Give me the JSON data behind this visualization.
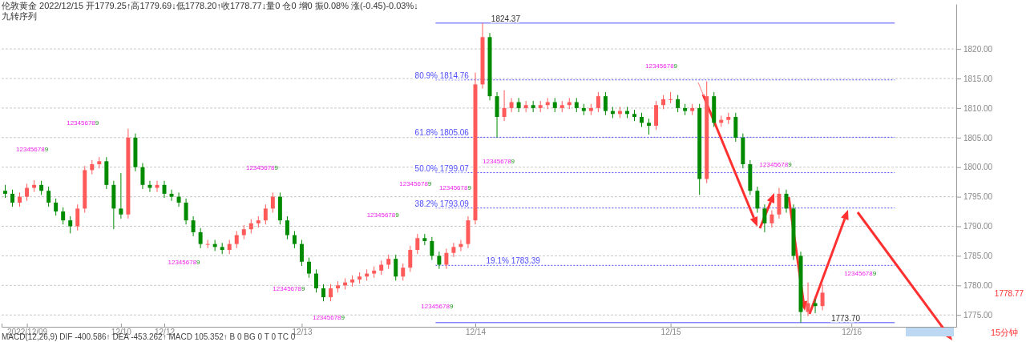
{
  "chart_data": {
    "type": "candlestick",
    "title": "伦敦黄金 2022/12/15 开1779.25↑高1779.69↓低1778.20↑收1778.77↓量0 仓0 增0 振0.08% 涨(-0.45)-0.03%↓",
    "subtitle": "九转序列",
    "categories": [
      null,
      null,
      null,
      "2022/12/09",
      null,
      null,
      null,
      null,
      null,
      null,
      null,
      null,
      null,
      null,
      null,
      null,
      "12/10",
      null,
      null,
      null,
      null,
      null,
      "12/12",
      null,
      null,
      null,
      null,
      null,
      null,
      null,
      null,
      null,
      null,
      null,
      null,
      null,
      null,
      null,
      null,
      null,
      null,
      "12/13",
      null,
      null,
      null,
      null,
      null,
      null,
      null,
      null,
      null,
      null,
      null,
      null,
      null,
      null,
      null,
      null,
      null,
      null,
      null,
      null,
      null,
      null,
      null,
      "12/14",
      null,
      null,
      null,
      null,
      null,
      null,
      null,
      null,
      null,
      null,
      null,
      null,
      null,
      null,
      null,
      null,
      null,
      null,
      null,
      null,
      null,
      null,
      null,
      null,
      null,
      null,
      "12/15",
      null,
      null,
      null,
      null,
      null,
      null,
      null,
      null,
      null,
      null,
      null,
      null,
      null,
      null,
      null,
      null,
      null,
      null,
      null,
      null,
      null,
      null,
      null,
      null,
      "12/16",
      null,
      null,
      null,
      null,
      null,
      null,
      null,
      null,
      null,
      null,
      null,
      null,
      null,
      null
    ],
    "ohlc": [
      [
        1796,
        1797,
        1794.8,
        1795.5
      ],
      [
        1795.5,
        1796.2,
        1793.3,
        1794
      ],
      [
        1794,
        1795.7,
        1793.3,
        1795
      ],
      [
        1795,
        1797.2,
        1794.3,
        1796.5
      ],
      [
        1796.5,
        1797.8,
        1795.8,
        1797
      ],
      [
        1797,
        1797.7,
        1795.3,
        1796
      ],
      [
        1796,
        1796.7,
        1793.3,
        1794
      ],
      [
        1794,
        1794.7,
        1791.8,
        1792.5
      ],
      [
        1792.5,
        1793.2,
        1790.3,
        1791
      ],
      [
        1791,
        1791.7,
        1788.8,
        1790
      ],
      [
        1790,
        1793.7,
        1789.3,
        1793
      ],
      [
        1793,
        1800.2,
        1792.3,
        1799.5
      ],
      [
        1799.5,
        1801.2,
        1798.8,
        1800.5
      ],
      [
        1800.5,
        1801.7,
        1799.8,
        1801
      ],
      [
        1801,
        1801.7,
        1796.3,
        1797
      ],
      [
        1797,
        1797.7,
        1789.5,
        1793
      ],
      [
        1793,
        1799,
        1791.3,
        1792
      ],
      [
        1792,
        1806.5,
        1791.3,
        1805
      ],
      [
        1805,
        1805.7,
        1799.3,
        1800
      ],
      [
        1800,
        1800.7,
        1796.3,
        1797
      ],
      [
        1797,
        1797.7,
        1795.8,
        1796.5
      ],
      [
        1796.5,
        1797.7,
        1795.8,
        1797
      ],
      [
        1797,
        1797.7,
        1794.8,
        1795.5
      ],
      [
        1795.5,
        1796.2,
        1794.3,
        1795
      ],
      [
        1795,
        1795.7,
        1793.3,
        1794
      ],
      [
        1794,
        1794.7,
        1790.3,
        1791
      ],
      [
        1791,
        1791.7,
        1788.3,
        1789
      ],
      [
        1789,
        1789.7,
        1786.3,
        1787
      ],
      [
        1787,
        1787.7,
        1786.3,
        1787
      ],
      [
        1787,
        1787.7,
        1785.8,
        1786.5
      ],
      [
        1786.5,
        1787.2,
        1785.3,
        1786
      ],
      [
        1786,
        1787.7,
        1785.3,
        1787
      ],
      [
        1787,
        1789.2,
        1786.3,
        1788.5
      ],
      [
        1788.5,
        1790.2,
        1787.8,
        1789.5
      ],
      [
        1789.5,
        1791.2,
        1788.8,
        1790.5
      ],
      [
        1790.5,
        1791.7,
        1789.8,
        1791
      ],
      [
        1791,
        1793.7,
        1790.3,
        1793
      ],
      [
        1793,
        1795.7,
        1792.3,
        1795
      ],
      [
        1795,
        1795.7,
        1790.3,
        1791
      ],
      [
        1791,
        1791.7,
        1787.8,
        1788.5
      ],
      [
        1788.5,
        1789.2,
        1786.3,
        1787
      ],
      [
        1787,
        1787.7,
        1783.3,
        1784
      ],
      [
        1784,
        1784.7,
        1781.3,
        1782
      ],
      [
        1782,
        1782.7,
        1778.8,
        1779.5
      ],
      [
        1779.5,
        1780.2,
        1777.3,
        1778
      ],
      [
        1778,
        1780.2,
        1777.3,
        1779.5
      ],
      [
        1779.5,
        1780.7,
        1778.8,
        1780
      ],
      [
        1780,
        1781.2,
        1779.3,
        1780.5
      ],
      [
        1780.5,
        1781.7,
        1779.8,
        1781
      ],
      [
        1781,
        1782.2,
        1780.3,
        1781.5
      ],
      [
        1781.5,
        1782.7,
        1780.8,
        1782
      ],
      [
        1782,
        1783.2,
        1781.3,
        1782.5
      ],
      [
        1782.5,
        1784.2,
        1781.8,
        1783.5
      ],
      [
        1783.5,
        1785.2,
        1782.8,
        1784.5
      ],
      [
        1784.5,
        1785.2,
        1780.8,
        1781.5
      ],
      [
        1781.5,
        1783.7,
        1780.8,
        1783
      ],
      [
        1783,
        1786.7,
        1782.3,
        1786
      ],
      [
        1786,
        1788.7,
        1785.3,
        1788
      ],
      [
        1788,
        1788.7,
        1786.8,
        1787.5
      ],
      [
        1787.5,
        1788.2,
        1784.3,
        1785
      ],
      [
        1785,
        1785.7,
        1782.8,
        1783.5
      ],
      [
        1783.5,
        1786.2,
        1782.8,
        1785.5
      ],
      [
        1785.5,
        1787.2,
        1784.8,
        1786.5
      ],
      [
        1786.5,
        1787.7,
        1785.8,
        1787
      ],
      [
        1787,
        1791.7,
        1786.3,
        1791
      ],
      [
        1791,
        1816,
        1790.3,
        1814
      ],
      [
        1814,
        1824.37,
        1813.3,
        1822
      ],
      [
        1822,
        1822.7,
        1811.3,
        1812
      ],
      [
        1812,
        1812.7,
        1805,
        1808.5
      ],
      [
        1808.5,
        1813,
        1807.8,
        1810
      ],
      [
        1810,
        1811.7,
        1809.3,
        1811
      ],
      [
        1811,
        1811.7,
        1809.3,
        1810
      ],
      [
        1810,
        1811.2,
        1809.3,
        1810.5
      ],
      [
        1810.5,
        1811.2,
        1809.3,
        1810
      ],
      [
        1810,
        1811.2,
        1809.3,
        1810.5
      ],
      [
        1810.5,
        1811.7,
        1809.8,
        1811
      ],
      [
        1811,
        1811.7,
        1809.3,
        1810
      ],
      [
        1810,
        1811.2,
        1809.3,
        1810.5
      ],
      [
        1810.5,
        1811.7,
        1809.8,
        1811
      ],
      [
        1811,
        1811.7,
        1809.3,
        1810
      ],
      [
        1810,
        1810.7,
        1808.8,
        1809.5
      ],
      [
        1809.5,
        1810.7,
        1808.8,
        1810
      ],
      [
        1810,
        1812.7,
        1809.3,
        1812
      ],
      [
        1812,
        1812.7,
        1808.8,
        1809.5
      ],
      [
        1809.5,
        1810.2,
        1808.3,
        1809
      ],
      [
        1809,
        1810.2,
        1808.3,
        1809.5
      ],
      [
        1809.5,
        1810.2,
        1808.3,
        1809
      ],
      [
        1809,
        1809.7,
        1807.8,
        1808.5
      ],
      [
        1808.5,
        1809.2,
        1806.8,
        1807.5
      ],
      [
        1807.5,
        1808.2,
        1805.5,
        1807
      ],
      [
        1807,
        1811.2,
        1806.3,
        1810.5
      ],
      [
        1810.5,
        1812.2,
        1809.8,
        1811.5
      ],
      [
        1811.5,
        1812.7,
        1810.8,
        1811.5
      ],
      [
        1811.5,
        1812.2,
        1809.3,
        1810
      ],
      [
        1810,
        1810.7,
        1808.8,
        1809.5
      ],
      [
        1809.5,
        1810.7,
        1808.8,
        1810
      ],
      [
        1810,
        1810.7,
        1795.3,
        1798
      ],
      [
        1798,
        1814.5,
        1797.3,
        1812
      ],
      [
        1812,
        1812.7,
        1806.8,
        1807.5
      ],
      [
        1807.5,
        1808.7,
        1806.8,
        1808
      ],
      [
        1808,
        1809.2,
        1807.3,
        1808.5
      ],
      [
        1808.5,
        1809.2,
        1804.3,
        1805
      ],
      [
        1805,
        1805.7,
        1799.8,
        1800.5
      ],
      [
        1800.5,
        1801.2,
        1795.3,
        1796
      ],
      [
        1796,
        1796.7,
        1792.3,
        1793
      ],
      [
        1793,
        1793.7,
        1789,
        1790.5
      ],
      [
        1790.5,
        1792.7,
        1789.8,
        1792
      ],
      [
        1792,
        1796.5,
        1791.3,
        1795.5
      ],
      [
        1795.5,
        1796.2,
        1792.3,
        1793
      ],
      [
        1793,
        1793.7,
        1784.3,
        1785
      ],
      [
        1785,
        1785.7,
        1773.7,
        1775.5
      ],
      [
        1775.5,
        1780.5,
        1774.8,
        1777
      ],
      [
        1777,
        1777.7,
        1775.3,
        1776.5
      ],
      [
        1776.5,
        1780.2,
        1775.8,
        1778.77
      ],
      null,
      null,
      null,
      null,
      null,
      null,
      null,
      null,
      null,
      null,
      null,
      null,
      null,
      null,
      null,
      null,
      null,
      null
    ],
    "ylim": [
      1773,
      1827.6
    ],
    "yticks": [
      {
        "value": 1775,
        "label": "1775.00"
      },
      {
        "value": 1780,
        "label": "1780.00"
      },
      {
        "value": 1785,
        "label": "1785.00"
      },
      {
        "value": 1790,
        "label": "1790.00"
      },
      {
        "value": 1795,
        "label": "1795.00"
      },
      {
        "value": 1800,
        "label": "1800.00"
      },
      {
        "value": 1805,
        "label": "1805.00"
      },
      {
        "value": 1810,
        "label": "1810.00"
      },
      {
        "value": 1815,
        "label": "1815.00"
      },
      {
        "value": 1820,
        "label": "1820.00"
      }
    ],
    "grid": "y",
    "ref_lines": [
      {
        "axis": "y",
        "value": 1824.37,
        "label": "1824.37",
        "color": "#4d4dff",
        "line_style": "solid"
      },
      {
        "axis": "y",
        "value": 1814.76,
        "label": "80.9% 1814.76",
        "color": "#4d4dff",
        "line_style": "dotted"
      },
      {
        "axis": "y",
        "value": 1805.06,
        "label": "61.8% 1805.06",
        "color": "#4d4dff",
        "line_style": "dotted"
      },
      {
        "axis": "y",
        "value": 1799.07,
        "label": "50.0% 1799.07",
        "color": "#4d4dff",
        "line_style": "dotted"
      },
      {
        "axis": "y",
        "value": 1793.09,
        "label": "38.2% 1793.09",
        "color": "#4d4dff",
        "line_style": "dotted"
      },
      {
        "axis": "y",
        "value": 1783.39,
        "label": "19.1% 1783.39",
        "color": "#4d4dff",
        "line_style": "dotted"
      },
      {
        "axis": "y",
        "value": 1773.7,
        "label": "1773.70",
        "color": "#4d4dff",
        "line_style": "solid"
      }
    ],
    "annotations": [
      "MACD(12,26,9) DIF -400.586↑ DEA -453.262↑ MACD 105.352↑ B 0 BG 0 T 0 TC 0",
      "15分钟",
      "1778.77",
      "123456789",
      "123456789",
      "123456789",
      "123456789",
      "123456789",
      "123456789",
      "123456789",
      "123456789",
      "123456789",
      "123456789",
      "123456789",
      "123456789",
      "123456789",
      "123456789"
    ]
  }
}
